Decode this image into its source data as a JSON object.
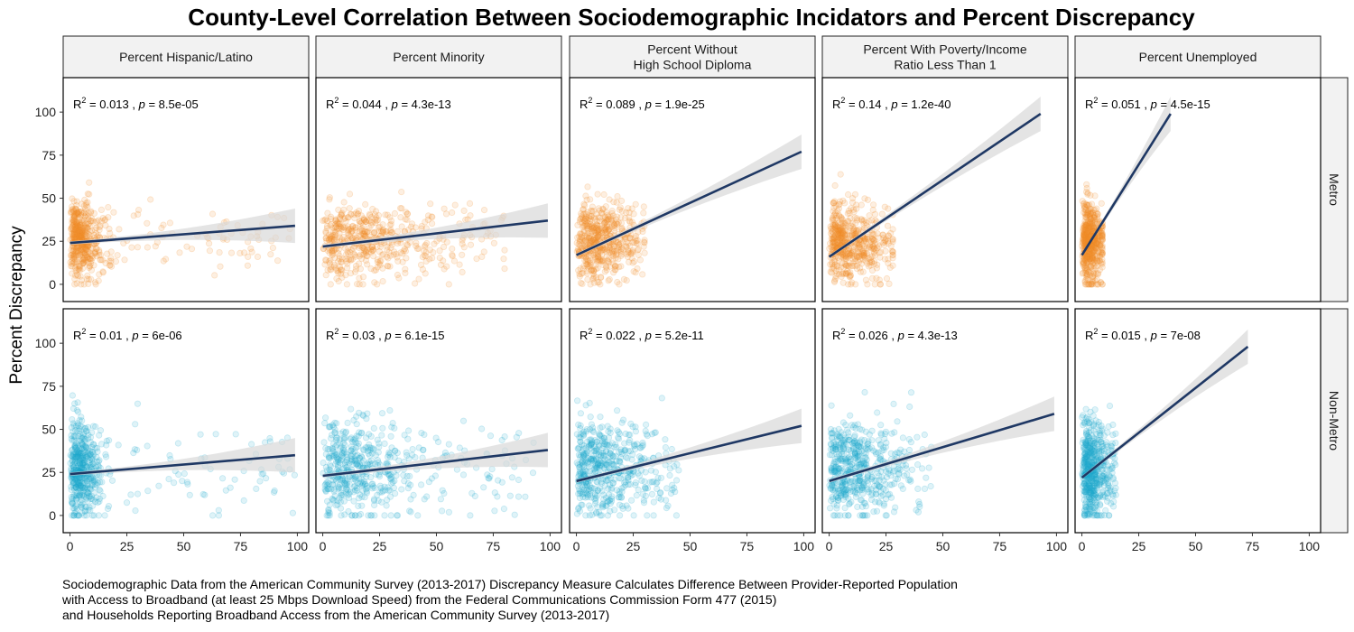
{
  "chart_data": {
    "type": "scatter",
    "title": "County-Level Correlation Between Sociodemographic Incidators and Percent Discrepancy",
    "ylabel": "Percent Discrepancy",
    "xlabel": "",
    "xlim": [
      -3,
      105
    ],
    "ylim": [
      -10,
      120
    ],
    "x_ticks": [
      0,
      25,
      50,
      75,
      100
    ],
    "y_ticks": [
      0,
      25,
      50,
      75,
      100
    ],
    "grid": false,
    "legend": "none",
    "colors": {
      "Metro": "#f28c28",
      "Non-Metro": "#1ea7cc",
      "fit_line": "#1f3864",
      "ribbon": "#d9d9d9",
      "strip_bg": "#f2f2f2"
    },
    "columns": [
      {
        "lines": [
          "Percent Hispanic/Latino"
        ]
      },
      {
        "lines": [
          "Percent Minority"
        ]
      },
      {
        "lines": [
          "Percent Without",
          "High School Diploma"
        ]
      },
      {
        "lines": [
          "Percent With Poverty/Income",
          "Ratio Less Than 1"
        ]
      },
      {
        "lines": [
          "Percent Unemployed"
        ]
      }
    ],
    "rows": [
      "Metro",
      "Non-Metro"
    ],
    "panels": [
      {
        "row": "Metro",
        "col": 0,
        "r2": "0.013",
        "p": "8.5e-05",
        "fit": {
          "x0": 0,
          "y0": 24,
          "x1": 99,
          "y1": 34
        },
        "cloud": {
          "xmin": 0,
          "xmax": 98,
          "xcore": 6,
          "ymean": 26,
          "ysd": 11
        }
      },
      {
        "row": "Metro",
        "col": 1,
        "r2": "0.044",
        "p": "4.3e-13",
        "fit": {
          "x0": 0,
          "y0": 22,
          "x1": 99,
          "y1": 37
        },
        "cloud": {
          "xmin": 0,
          "xmax": 80,
          "xcore": 22,
          "ymean": 26,
          "ysd": 11
        }
      },
      {
        "row": "Metro",
        "col": 2,
        "r2": "0.089",
        "p": "1.9e-25",
        "fit": {
          "x0": 0,
          "y0": 17,
          "x1": 99,
          "y1": 77
        },
        "cloud": {
          "xmin": 0,
          "xmax": 30,
          "xcore": 12,
          "ymean": 25,
          "ysd": 11
        }
      },
      {
        "row": "Metro",
        "col": 3,
        "r2": "0.14",
        "p": "1.2e-40",
        "fit": {
          "x0": 0,
          "y0": 16,
          "x1": 93,
          "y1": 99
        },
        "cloud": {
          "xmin": 0,
          "xmax": 28,
          "xcore": 12,
          "ymean": 24,
          "ysd": 11
        }
      },
      {
        "row": "Metro",
        "col": 4,
        "r2": "0.051",
        "p": "4.5e-15",
        "fit": {
          "x0": 0,
          "y0": 17,
          "x1": 39,
          "y1": 99
        },
        "cloud": {
          "xmin": 0,
          "xmax": 9,
          "xcore": 4,
          "ymean": 25,
          "ysd": 11
        }
      },
      {
        "row": "Non-Metro",
        "col": 0,
        "r2": "0.01",
        "p": "6e-06",
        "fit": {
          "x0": 0,
          "y0": 24,
          "x1": 99,
          "y1": 35
        },
        "cloud": {
          "xmin": 0,
          "xmax": 99,
          "xcore": 6,
          "ymean": 27,
          "ysd": 14
        }
      },
      {
        "row": "Non-Metro",
        "col": 1,
        "r2": "0.03",
        "p": "6.1e-15",
        "fit": {
          "x0": 0,
          "y0": 23,
          "x1": 99,
          "y1": 38
        },
        "cloud": {
          "xmin": 0,
          "xmax": 95,
          "xcore": 20,
          "ymean": 27,
          "ysd": 14
        }
      },
      {
        "row": "Non-Metro",
        "col": 2,
        "r2": "0.022",
        "p": "5.2e-11",
        "fit": {
          "x0": 0,
          "y0": 20,
          "x1": 99,
          "y1": 52
        },
        "cloud": {
          "xmin": 0,
          "xmax": 45,
          "xcore": 15,
          "ymean": 27,
          "ysd": 14
        }
      },
      {
        "row": "Non-Metro",
        "col": 3,
        "r2": "0.026",
        "p": "4.3e-13",
        "fit": {
          "x0": 0,
          "y0": 20,
          "x1": 99,
          "y1": 59
        },
        "cloud": {
          "xmin": 0,
          "xmax": 45,
          "xcore": 15,
          "ymean": 27,
          "ysd": 14
        }
      },
      {
        "row": "Non-Metro",
        "col": 4,
        "r2": "0.015",
        "p": "7e-08",
        "fit": {
          "x0": 0,
          "y0": 22,
          "x1": 73,
          "y1": 98
        },
        "cloud": {
          "xmin": 0,
          "xmax": 15,
          "xcore": 5,
          "ymean": 27,
          "ysd": 14
        }
      }
    ]
  },
  "caption": [
    "Sociodemographic Data from the American Community Survey (2013-2017) Discrepancy Measure Calculates Difference Between Provider-Reported Population",
    "with Access to Broadband (at least 25 Mbps Download Speed) from the Federal Communications Commission Form 477 (2015)",
    "and Households Reporting Broadband Access from the American Community Survey (2013-2017)"
  ]
}
